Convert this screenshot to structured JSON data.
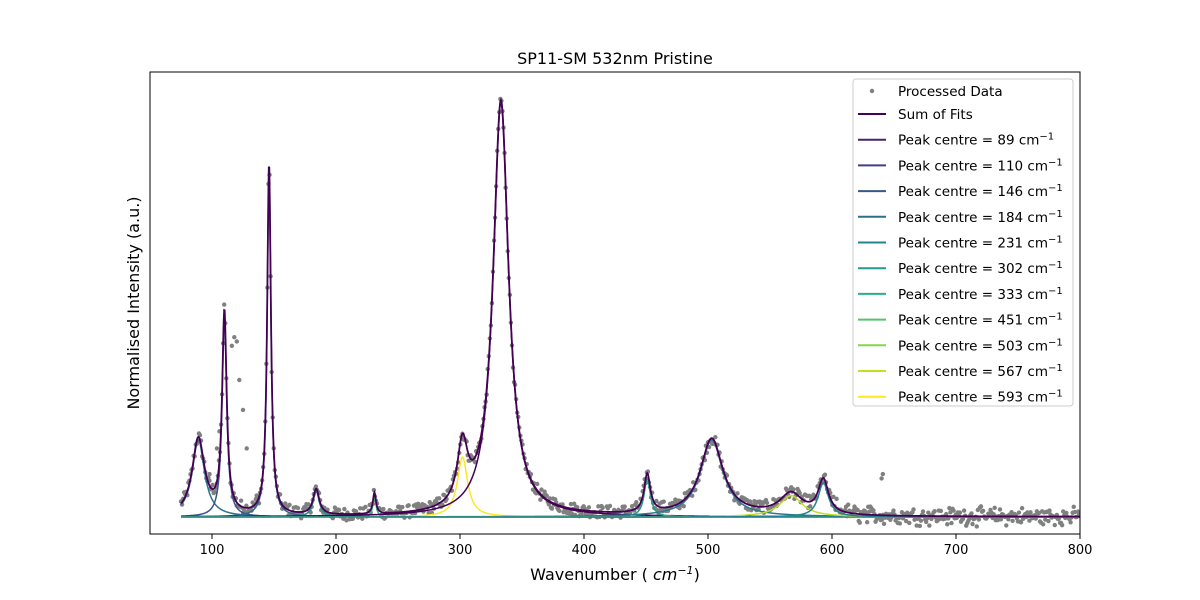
{
  "chart_data": {
    "type": "scatter",
    "title": "SP11-SM 532nm Pristine",
    "xlabel": "Wavenumber (cm⁻¹)",
    "ylabel": "Normalised Intensity (a.u.)",
    "xlim": [
      50,
      800
    ],
    "xticks": [
      100,
      200,
      300,
      400,
      500,
      600,
      700,
      800
    ],
    "yticks_shown": false,
    "grid": false,
    "legend_placement": "top-right",
    "baseline": 0.02,
    "peaks": [
      {
        "center": 89,
        "amplitude": 0.18,
        "hwhm": 6.0,
        "color": "#2c728e"
      },
      {
        "center": 110,
        "amplitude": 0.47,
        "hwhm": 2.2,
        "color": "#3b528b"
      },
      {
        "center": 146,
        "amplitude": 0.82,
        "hwhm": 1.8,
        "color": "#31688e"
      },
      {
        "center": 184,
        "amplitude": 0.06,
        "hwhm": 3.0,
        "color": "#21918c"
      },
      {
        "center": 231,
        "amplitude": 0.05,
        "hwhm": 1.5,
        "color": "#35b779"
      },
      {
        "center": 302,
        "amplitude": 0.14,
        "hwhm": 5.0,
        "color": "#fde725"
      },
      {
        "center": 333,
        "amplitude": 0.97,
        "hwhm": 7.5,
        "color": "#440154"
      },
      {
        "center": 451,
        "amplitude": 0.09,
        "hwhm": 3.0,
        "color": "#1fa187"
      },
      {
        "center": 503,
        "amplitude": 0.18,
        "hwhm": 11.0,
        "color": "#2a788e"
      },
      {
        "center": 567,
        "amplitude": 0.05,
        "hwhm": 11.0,
        "color": "#bddf26"
      },
      {
        "center": 593,
        "amplitude": 0.08,
        "hwhm": 5.0,
        "color": "#26828e"
      }
    ],
    "series": [
      {
        "name": "Processed Data",
        "kind": "scatter",
        "color": "#808080"
      },
      {
        "name": "Sum of Fits",
        "kind": "line",
        "color": "#440154"
      },
      {
        "name": "Peak centre = 89 cm",
        "kind": "line",
        "color": "#482173"
      },
      {
        "name": "Peak centre = 110 cm",
        "kind": "line",
        "color": "#433e85"
      },
      {
        "name": "Peak centre = 146 cm",
        "kind": "line",
        "color": "#38588c"
      },
      {
        "name": "Peak centre = 184 cm",
        "kind": "line",
        "color": "#2d708e"
      },
      {
        "name": "Peak centre = 231 cm",
        "kind": "line",
        "color": "#25858e"
      },
      {
        "name": "Peak centre = 302 cm",
        "kind": "line",
        "color": "#1e9b8a"
      },
      {
        "name": "Peak centre = 333 cm",
        "kind": "line",
        "color": "#2ab07f"
      },
      {
        "name": "Peak centre = 451 cm",
        "kind": "line",
        "color": "#52c569"
      },
      {
        "name": "Peak centre = 503 cm",
        "kind": "line",
        "color": "#86d549"
      },
      {
        "name": "Peak centre = 567 cm",
        "kind": "line",
        "color": "#c2df23"
      },
      {
        "name": "Peak centre = 593 cm",
        "kind": "line",
        "color": "#fde725"
      }
    ],
    "legend_superscript": "−1",
    "anomalous_points": [
      {
        "x": 116,
        "y": 0.42
      },
      {
        "x": 118,
        "y": 0.44
      },
      {
        "x": 120,
        "y": 0.43
      },
      {
        "x": 122,
        "y": 0.34
      },
      {
        "x": 125,
        "y": 0.27
      },
      {
        "x": 128,
        "y": 0.18
      },
      {
        "x": 136,
        "y": 0.07
      },
      {
        "x": 640,
        "y": 0.11
      },
      {
        "x": 641,
        "y": 0.12
      },
      {
        "x": 98,
        "y": 0.12
      },
      {
        "x": 104,
        "y": 0.18
      },
      {
        "x": 106,
        "y": 0.22
      }
    ]
  }
}
